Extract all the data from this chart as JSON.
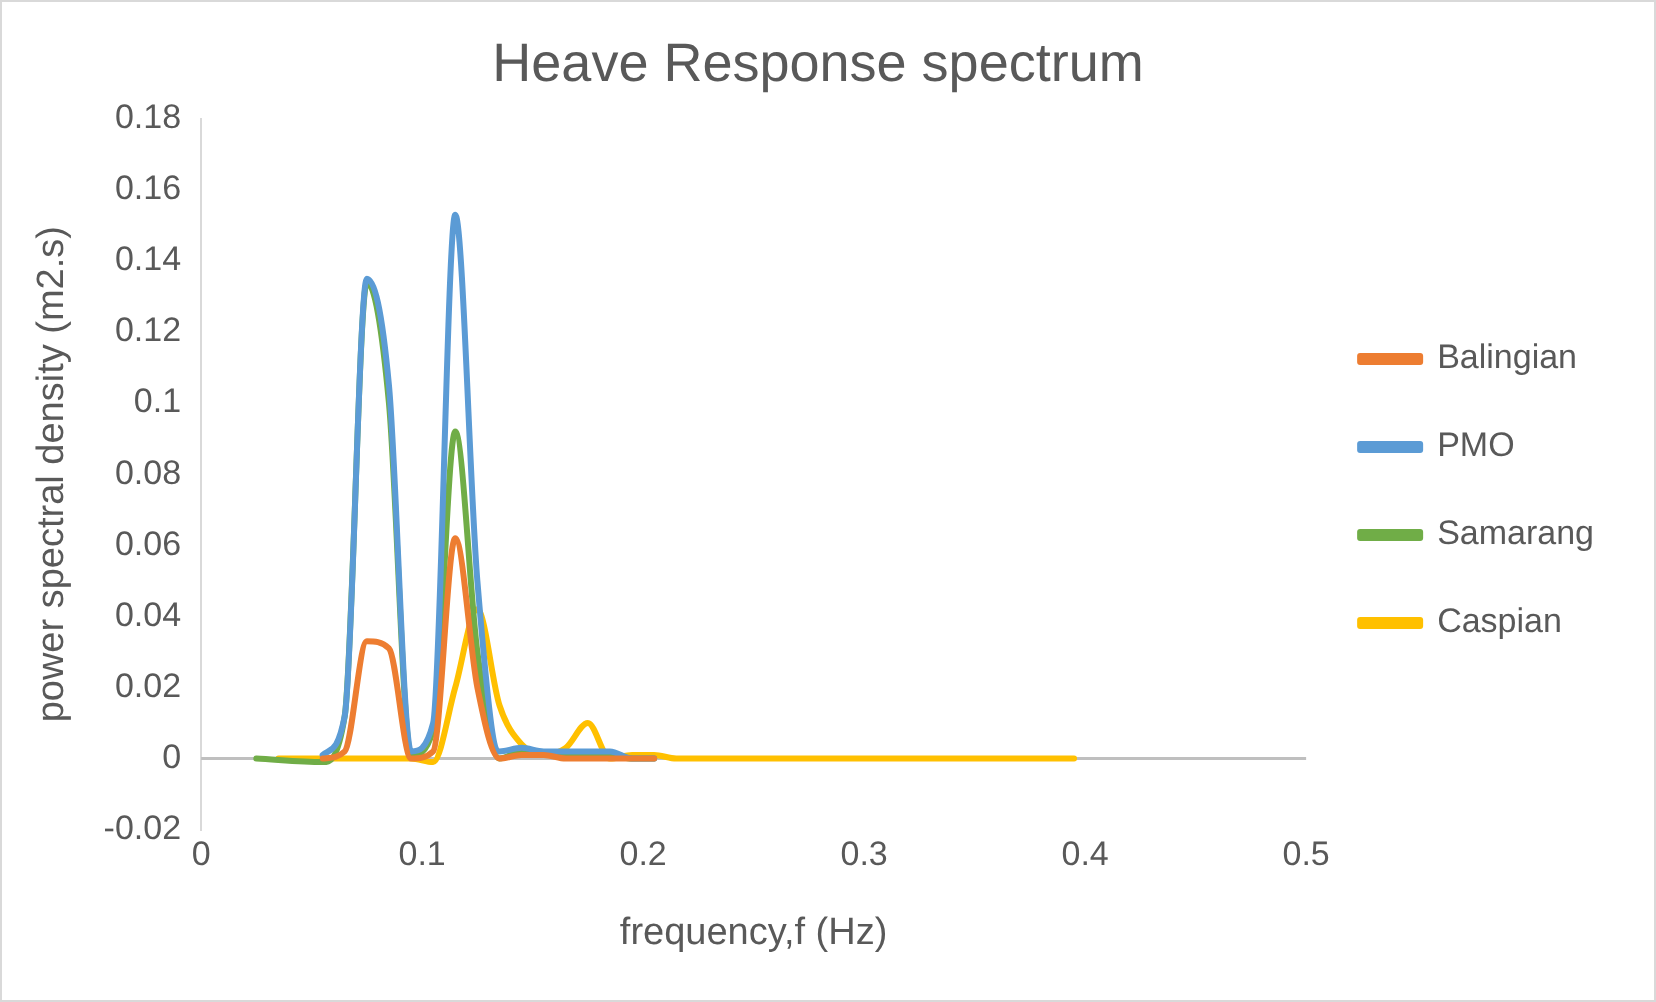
{
  "chart_data": {
    "type": "line",
    "title": "Heave Response spectrum",
    "xlabel": "frequency,f (Hz)",
    "ylabel": "power spectral density (m2.s)",
    "x": [
      0.025,
      0.035,
      0.045,
      0.055,
      0.065,
      0.075,
      0.085,
      0.095,
      0.105,
      0.115,
      0.125,
      0.135,
      0.145,
      0.155,
      0.165,
      0.175,
      0.185,
      0.195,
      0.205,
      0.215,
      0.225,
      0.235,
      0.245,
      0.255,
      0.265,
      0.275,
      0.285,
      0.295,
      0.305,
      0.315,
      0.325,
      0.335,
      0.345,
      0.355,
      0.365,
      0.375,
      0.385,
      0.395
    ],
    "series": [
      {
        "name": "Balingian",
        "color": "#ed7d31",
        "values": [
          null,
          null,
          null,
          0,
          0.002,
          0.033,
          0.031,
          0,
          0.002,
          0.062,
          0.02,
          0,
          0.001,
          0.001,
          0,
          0,
          0,
          0,
          0,
          null,
          null,
          null,
          null,
          null,
          null,
          null,
          null,
          null,
          null,
          null,
          null,
          null,
          null,
          null,
          null,
          null,
          null,
          null
        ]
      },
      {
        "name": "PMO",
        "color": "#5b9bd5",
        "values": [
          null,
          null,
          null,
          0.001,
          0.012,
          0.135,
          0.105,
          0.002,
          0.01,
          0.153,
          0.05,
          0.002,
          0.003,
          0.002,
          0.002,
          0.002,
          0.002,
          0,
          0,
          null,
          null,
          null,
          null,
          null,
          null,
          null,
          null,
          null,
          null,
          null,
          null,
          null,
          null,
          null,
          null,
          null,
          null,
          null
        ]
      },
      {
        "name": "Samarang",
        "color": "#70ad47",
        "values": [
          0,
          null,
          null,
          -0.001,
          0.012,
          0.134,
          0.1,
          0.001,
          0.008,
          0.092,
          0.03,
          0,
          0.002,
          0.001,
          0.001,
          0.001,
          0.001,
          0,
          0,
          null,
          null,
          null,
          null,
          null,
          null,
          null,
          null,
          null,
          null,
          null,
          null,
          null,
          null,
          null,
          null,
          null,
          null,
          null
        ]
      },
      {
        "name": "Caspian",
        "color": "#ffc000",
        "values": [
          null,
          0,
          0,
          0,
          0,
          0,
          0,
          0,
          -0.001,
          0.02,
          0.042,
          0.015,
          0.004,
          0.001,
          0.003,
          0.01,
          0,
          0.001,
          0.001,
          0,
          0,
          0,
          0,
          0,
          0,
          0,
          0,
          0,
          0,
          0,
          0,
          0,
          0,
          0,
          0,
          0,
          0,
          0
        ]
      }
    ],
    "xlim": [
      0,
      0.5
    ],
    "xticks": [
      0,
      0.1,
      0.2,
      0.3,
      0.4,
      0.5
    ],
    "ylim": [
      -0.02,
      0.18
    ],
    "yticks": [
      -0.02,
      0,
      0.02,
      0.04,
      0.06,
      0.08,
      0.1,
      0.12,
      0.14,
      0.16,
      0.18
    ],
    "grid": false,
    "legend": "right",
    "marker": "none",
    "line_style": "solid"
  }
}
